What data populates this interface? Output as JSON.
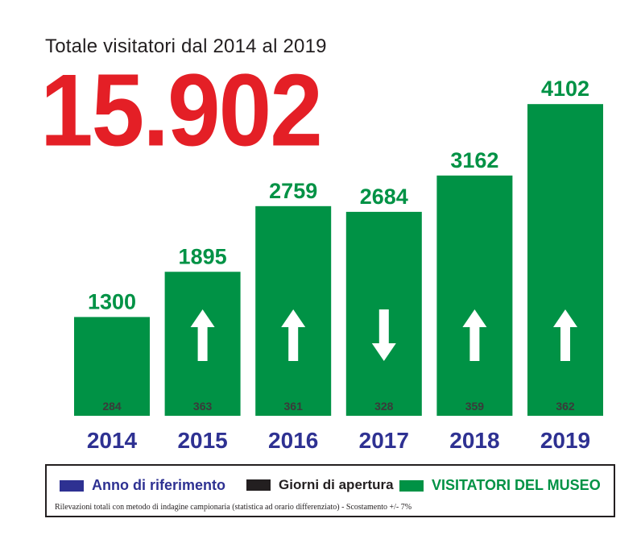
{
  "header": {
    "subtitle": "Totale visitatori dal 2014 al 2019",
    "total": "15.902"
  },
  "colors": {
    "bar": "#009245",
    "total": "#e41f26",
    "year": "#2e3192",
    "days": "#3a3a3a"
  },
  "chart_data": {
    "type": "bar",
    "title": "Totale visitatori dal 2014 al 2019",
    "categories": [
      "2014",
      "2015",
      "2016",
      "2017",
      "2018",
      "2019"
    ],
    "series": [
      {
        "name": "VISITATORI DEL MUSEO",
        "values": [
          1300,
          1895,
          2759,
          2684,
          3162,
          4102
        ]
      },
      {
        "name": "Giorni di apertura",
        "values": [
          284,
          363,
          361,
          328,
          359,
          362
        ]
      }
    ],
    "trend": [
      null,
      "up",
      "up",
      "down",
      "up",
      "up"
    ],
    "ylim": [
      0,
      4102
    ],
    "grid": false,
    "legend_position": "bottom"
  },
  "legend": {
    "items": [
      {
        "label": "Anno di riferimento",
        "color": "#2e3192"
      },
      {
        "label": "Giorni di apertura",
        "color": "#231f20"
      },
      {
        "label": "VISITATORI DEL MUSEO",
        "color": "#009245"
      }
    ],
    "note": "Rilevazioni totali con metodo di indagine campionaria (statistica ad orario differenziato) - Scostamento  +/-  7%"
  }
}
